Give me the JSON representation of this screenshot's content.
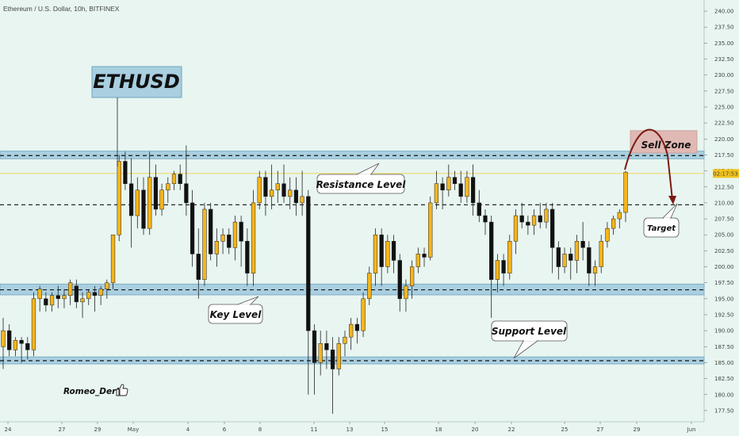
{
  "header": {
    "symbol_title": "Ethereum / U.S. Dollar, 10h, BITFINEX"
  },
  "annotations": {
    "ethusd": "ETHUSD",
    "resistance": "Resistance Level",
    "key": "Key Level",
    "support": "Support Level",
    "sell_zone": "Sell Zone",
    "target": "Target",
    "author": "Romeo_Deris",
    "author_icon": "thumbs-up-icon"
  },
  "colors": {
    "background": "#e8f5f0",
    "candle_up": "#f5b51c",
    "candle_down": "#111111",
    "zone": "#a9cfe0",
    "sell_zone": "#e0b8b4",
    "arrow": "#7a1a12",
    "price_tag": "#f2c41c"
  },
  "chart_data": {
    "type": "candlestick",
    "x_tick_labels": [
      "24",
      "27",
      "29",
      "May",
      "4",
      "6",
      "8",
      "11",
      "13",
      "15",
      "18",
      "20",
      "22",
      "25",
      "27",
      "29",
      "Jun"
    ],
    "y_ticks": [
      177.5,
      180,
      182.5,
      185,
      187.5,
      190,
      192.5,
      195,
      197.5,
      200,
      202.5,
      205,
      207.5,
      210,
      212.5,
      215,
      217.5,
      220,
      222.5,
      225,
      227.5,
      230,
      232.5,
      235,
      237.5,
      240
    ],
    "y_tick_labels": [
      "177.50",
      "180.00",
      "182.50",
      "185.00",
      "187.50",
      "190.00",
      "192.50",
      "195.00",
      "197.50",
      "200.00",
      "202.50",
      "205.00",
      "207.50",
      "210.00",
      "212.50",
      "215.00",
      "217.50",
      "220.00",
      "222.50",
      "225.00",
      "227.50",
      "230.00",
      "232.50",
      "235.00",
      "237.50",
      "240.00"
    ],
    "ylim": [
      176,
      241
    ],
    "current_price_label": "02:17:53",
    "current_price": 214.6,
    "levels": {
      "resistance_zone": [
        216.9,
        218.1
      ],
      "resistance_line": 217.4,
      "mid_line": 209.7,
      "key_zone": [
        195.6,
        197.3
      ],
      "key_line": 196.4,
      "support_zone": [
        184.8,
        185.9
      ],
      "support_line": 185.3,
      "sell_zone": [
        217.8,
        221.3
      ]
    },
    "candles": [
      [
        187.5,
        192,
        184,
        190
      ],
      [
        190,
        191,
        186,
        187
      ],
      [
        187,
        189,
        186,
        188.5
      ],
      [
        188.5,
        189,
        185,
        188
      ],
      [
        188,
        189,
        185.5,
        187
      ],
      [
        187,
        196,
        186,
        195
      ],
      [
        195,
        197,
        193,
        196.5
      ],
      [
        195,
        196,
        193,
        194
      ],
      [
        194,
        196,
        193,
        195.5
      ],
      [
        195.5,
        197,
        193.5,
        195
      ],
      [
        195,
        196.5,
        193.5,
        195.5
      ],
      [
        195.5,
        198,
        194,
        197.5
      ],
      [
        197,
        198,
        193.5,
        194.5
      ],
      [
        194.5,
        196,
        192,
        195
      ],
      [
        195,
        196.5,
        194,
        196
      ],
      [
        196,
        197,
        193,
        195.5
      ],
      [
        195.5,
        197,
        194,
        196.5
      ],
      [
        196.5,
        198,
        195,
        197.5
      ],
      [
        197.5,
        205,
        196.5,
        205
      ],
      [
        205,
        217.5,
        204,
        216.5
      ],
      [
        216.5,
        218,
        212,
        213
      ],
      [
        213,
        217,
        203,
        208
      ],
      [
        208,
        214,
        206,
        212
      ],
      [
        212,
        214,
        205,
        206
      ],
      [
        206,
        218,
        205,
        214
      ],
      [
        214,
        216,
        208,
        209
      ],
      [
        209,
        213,
        208,
        212
      ],
      [
        212,
        214,
        210,
        213
      ],
      [
        213,
        215,
        212,
        214.5
      ],
      [
        214.5,
        216,
        212,
        213
      ],
      [
        213,
        219,
        208,
        210
      ],
      [
        210,
        212,
        200,
        202
      ],
      [
        202,
        206,
        195,
        198
      ],
      [
        198,
        210,
        197,
        209
      ],
      [
        209,
        210,
        201,
        202
      ],
      [
        202,
        206,
        200,
        204
      ],
      [
        204,
        206,
        202,
        205
      ],
      [
        205,
        206,
        202,
        203
      ],
      [
        203,
        208,
        201,
        207
      ],
      [
        207,
        208,
        200,
        204
      ],
      [
        204,
        206,
        197,
        199
      ],
      [
        199,
        212,
        197,
        210
      ],
      [
        210,
        215,
        209,
        214
      ],
      [
        214,
        215,
        208,
        211
      ],
      [
        211,
        216,
        209,
        212
      ],
      [
        212,
        215,
        210,
        213
      ],
      [
        213,
        216,
        210,
        211
      ],
      [
        211,
        214,
        209,
        212
      ],
      [
        212,
        214,
        208,
        210
      ],
      [
        210,
        215,
        208,
        211
      ],
      [
        211,
        212,
        180,
        190
      ],
      [
        190,
        191,
        180,
        185
      ],
      [
        185,
        190,
        183,
        188
      ],
      [
        188,
        190,
        184,
        187
      ],
      [
        187,
        189,
        177,
        184
      ],
      [
        184,
        189,
        183,
        188
      ],
      [
        188,
        190,
        186,
        189
      ],
      [
        189,
        192,
        187,
        191
      ],
      [
        191,
        192,
        188,
        190
      ],
      [
        190,
        196,
        189,
        195
      ],
      [
        195,
        200,
        194,
        199
      ],
      [
        199,
        206,
        197,
        205
      ],
      [
        205,
        206,
        197,
        200
      ],
      [
        200,
        205,
        199,
        204
      ],
      [
        204,
        205,
        199,
        201
      ],
      [
        201,
        202,
        193,
        195
      ],
      [
        195,
        198,
        193,
        197
      ],
      [
        197,
        201,
        195,
        200
      ],
      [
        200,
        203,
        199,
        202
      ],
      [
        202,
        203,
        200,
        201.5
      ],
      [
        201.5,
        211,
        201,
        210
      ],
      [
        210,
        215,
        209,
        213
      ],
      [
        213,
        214,
        209,
        212
      ],
      [
        212,
        216,
        211,
        214
      ],
      [
        214,
        215,
        212,
        213
      ],
      [
        213,
        215,
        210,
        211
      ],
      [
        211,
        215,
        210,
        214
      ],
      [
        214,
        216,
        208,
        210
      ],
      [
        210,
        212,
        207,
        208
      ],
      [
        208,
        209,
        205,
        207
      ],
      [
        207,
        208,
        192,
        198
      ],
      [
        198,
        202,
        196,
        201
      ],
      [
        201,
        202,
        197,
        199
      ],
      [
        199,
        205,
        198,
        204
      ],
      [
        204,
        209,
        202,
        208
      ],
      [
        208,
        210,
        206,
        207
      ],
      [
        207,
        208,
        205,
        206.5
      ],
      [
        206.5,
        209,
        205,
        208
      ],
      [
        208,
        210,
        206,
        207
      ],
      [
        207,
        210,
        206,
        209
      ],
      [
        209,
        210,
        199,
        203
      ],
      [
        203,
        204,
        198,
        200
      ],
      [
        200,
        203,
        199,
        202
      ],
      [
        202,
        203,
        198,
        201
      ],
      [
        201,
        205,
        199,
        204
      ],
      [
        204,
        207,
        201,
        203
      ],
      [
        203,
        204,
        197,
        199
      ],
      [
        199,
        201,
        197,
        200
      ],
      [
        200,
        205,
        199,
        204
      ],
      [
        204,
        207,
        203,
        206
      ],
      [
        206,
        208,
        205,
        207.5
      ],
      [
        207.5,
        209,
        206,
        208.5
      ],
      [
        208.5,
        215,
        207,
        214.8
      ]
    ]
  }
}
